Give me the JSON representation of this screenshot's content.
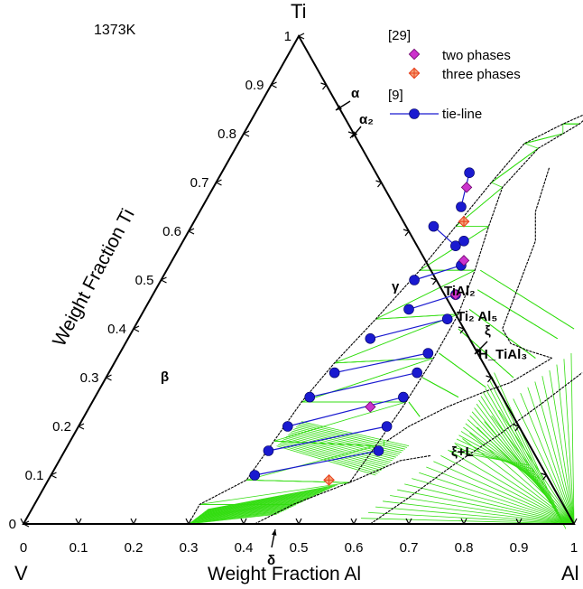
{
  "chart_data": {
    "type": "scatter",
    "diagram": "ternary",
    "temperature_label": "1373K",
    "corners": {
      "top": "Ti",
      "left": "V",
      "right": "Al"
    },
    "axes": {
      "left_title": "Weight Fraction Ti",
      "bottom_title": "Weight Fraction Al",
      "bottom_ticks": [
        "0",
        "0.1",
        "0.2",
        "0.3",
        "0.4",
        "0.5",
        "0.6",
        "0.7",
        "0.8",
        "0.9",
        "1"
      ],
      "left_ticks": [
        "0",
        "0.1",
        "0.2",
        "0.3",
        "0.4",
        "0.5",
        "0.6",
        "0.7",
        "0.8",
        "0.9",
        "1"
      ],
      "range": [
        0,
        1
      ]
    },
    "region_labels": [
      "β",
      "γ",
      "α",
      "α₂",
      "TiAl₂",
      "Ti₂ Al₅",
      "ξ",
      "H_TiAl₃",
      "ξ+L",
      "δ"
    ],
    "legend": {
      "groups": [
        {
          "ref": "[29]",
          "entries": [
            {
              "label": "two phases",
              "marker": "diamond",
              "color": "#cc33cc"
            },
            {
              "label": "three phases",
              "marker": "crossed-diamond",
              "color": "#e8401c"
            }
          ]
        },
        {
          "ref": "[9]",
          "entries": [
            {
              "label": "tie-line",
              "marker": "circle-line",
              "color": "#1a1ad0"
            }
          ]
        }
      ]
    },
    "tie_lines": [
      {
        "a": [
          0.37,
          0.1
        ],
        "b": [
          0.57,
          0.15
        ]
      },
      {
        "a": [
          0.37,
          0.15
        ],
        "b": [
          0.56,
          0.2
        ]
      },
      {
        "a": [
          0.38,
          0.2
        ],
        "b": [
          0.56,
          0.26
        ]
      },
      {
        "a": [
          0.39,
          0.26
        ],
        "b": [
          0.56,
          0.31
        ]
      },
      {
        "a": [
          0.41,
          0.31
        ],
        "b": [
          0.56,
          0.35
        ]
      },
      {
        "a": [
          0.44,
          0.38
        ],
        "b": [
          0.56,
          0.42
        ]
      },
      {
        "a": [
          0.48,
          0.44
        ],
        "b": [
          0.55,
          0.47
        ]
      },
      {
        "a": [
          0.46,
          0.5
        ],
        "b": [
          0.53,
          0.53
        ]
      },
      {
        "a": [
          0.44,
          0.61
        ],
        "b": [
          0.5,
          0.57
        ]
      },
      {
        "a": [
          0.45,
          0.72
        ],
        "b": [
          0.47,
          0.65
        ]
      }
    ],
    "tie_line_points_unpaired": [
      [
        0.51,
        0.58
      ]
    ],
    "two_phase_points": [
      [
        0.46,
        0.69
      ],
      [
        0.53,
        0.54
      ],
      [
        0.55,
        0.47
      ],
      [
        0.51,
        0.24
      ]
    ],
    "three_phase_points": [
      [
        0.49,
        0.62
      ],
      [
        0.51,
        0.09
      ]
    ],
    "colors": {
      "tie_line_fill": "#33dd11",
      "boundary": "#000000",
      "tie_line": "#1a1ad0",
      "two_phase": "#cc33cc",
      "three_phase": "#e8401c"
    }
  }
}
